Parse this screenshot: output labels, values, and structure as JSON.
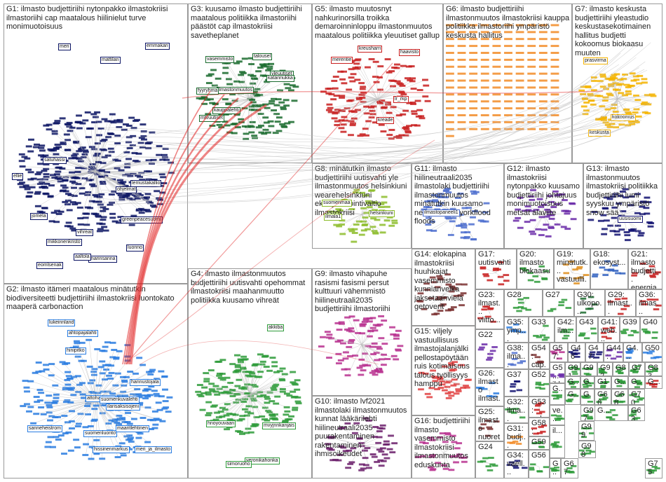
{
  "groups": [
    {
      "id": "g1",
      "title": "G1: ilmasto budjettiriihi nytonpakko ilmastokriisi ilmastoriihi cap maatalous hiilinielut turve monimuotoisuus",
      "color": "#0b1463",
      "labels": [
        "lemustakallio",
        "jomela",
        "meri",
        "mikkonenkristo",
        "vihreat",
        "marinsanna",
        "luonno",
        "greenpeacesuomi",
        "satuhassi",
        "emmakari",
        "aaltola",
        "mattilan",
        "ellie",
        "ohjelmat",
        "eomlsenak"
      ]
    },
    {
      "id": "g2",
      "title": "G2: ilmasto itämeri maatalous minätutkin biodiversiteetti budjettiriihi ilmastokriisi luontokato maaperä carbonaction",
      "color": "#2a7de1",
      "labels": [
        "hinipitko",
        "ahtopajalahti",
        "ilarisaksisojeni",
        "hissinenmarkus",
        "hannustojala",
        "sanneheistrom",
        "meri_ja_ilmasto",
        "attoharjanne",
        "suomenluonto",
        "suomenkuvalehti",
        "maaritlehtinen",
        "lukeinnland"
      ]
    },
    {
      "id": "g3",
      "title": "G3: kuusamo ilmasto budjettiriihi maatalous politiikka ilmastoriihi päästöt cap ilmastokriisi savetheplanet",
      "color": "#1a6b2e",
      "labels": [
        "vasemmisto",
        "talousel",
        "kauppalehti",
        "mtvuutiset",
        "yleuutiset",
        "katannukka",
        "ilmastonmuutos",
        "fyyryhma"
      ]
    },
    {
      "id": "g4",
      "title": "G4: ilmasto ilmastonmuutos budjettiriihi uutisvahti opehommat ilmastokriisi maahanmuutto politiikka kuusamo vihreät",
      "color": "#2e9b3a",
      "labels": [
        "veronikahonka",
        "mvyjnnkanjais",
        "simoruoho",
        "akkiba",
        "hnoyouvaan"
      ]
    },
    {
      "id": "g5",
      "title": "G5: ilmasto muutosnyt nahkurinorsilla troikka demaroinninloppu ilmastonmuutos maatalous politiikka yleuutiset gallup",
      "color": "#c81e1e",
      "labels": [
        "merentie",
        "lr_rkp",
        "kreusharri",
        "kreade",
        "haavisto"
      ]
    },
    {
      "id": "g6",
      "title": "G6: ilmasto budjettiriihi ilmastonmuutos ilmastokriisi kauppa politiikka ilmastoriihi ympäristö keskusta hallitus",
      "color": "#f28c28",
      "labels": []
    },
    {
      "id": "g7",
      "title": "G7: ilmasto keskusta budjettiriihi yleastudio keskustasekotimainen hallitus budjetti kokoomus biokaasu muuten",
      "color": "#f5b400",
      "labels": [
        "prasvirma",
        "keskusta",
        "kokoomus"
      ]
    },
    {
      "id": "g8",
      "title": "G8: minätutkin ilmasto budjettiriihi uutisvahti yle ilmastonmuutos helsinkiuni wearehelsinkiuni ekohyvinvointivaltio ilmastokriisi",
      "color": "#8dbd2b",
      "labels": [
        "suomenmaa",
        "ilmala1",
        "helsinkiuni"
      ]
    },
    {
      "id": "g9",
      "title": "G9: ilmasto vihapuhe rasismi fasismi persut kulttuuri vähemmistö hiilineutraali2035 budjettiriihi ilmastoriihi",
      "color": "#b8318f",
      "labels": []
    },
    {
      "id": "g10",
      "title": "G10: ilmasto lvf2021 ilmastolaki ilmastonmuutos kunnat lääkärilehti hiilineutraali2035 puurakentaminen rakentaminen ihmisoikeudet",
      "color": "#6b1f6b",
      "labels": []
    },
    {
      "id": "g11",
      "title": "G11: ilmasto hiilineutraali2035 ilmastolaki budjettiriihi ilmastonmuutos minätutkin kuusamo newyork newyorkflood floods",
      "color": "#4d6fcf",
      "labels": [
        "ilmastopaneeli1"
      ]
    },
    {
      "id": "g12",
      "title": "G12: ilmasto ilmastokriisi nytonpakko kuusamo budjettiriihi johtajuus monimuotoisuus metsät alaviite",
      "color": "#6a2aa8",
      "labels": []
    },
    {
      "id": "g13",
      "title": "G13: ilmasto ilmastonmuutos ilmastokriisi politiikka budjettiriihi lumi syyskuu ympäristö snow sää",
      "color": "#101070",
      "labels": [
        "uusisuomi"
      ]
    },
    {
      "id": "g14",
      "title": "G14: elokapina ilmastokriisi huuhkajat vasemmisto kunnianvelka jaksetaanvielä getoverit",
      "color": "#7a3030",
      "labels": []
    },
    {
      "id": "g15",
      "title": "G15: viljely vastuullisuus ilmastojalanjälki pellostapöytään ruis kotimaisuus talous työllisyys hamppu",
      "color": "#e04040",
      "labels": []
    },
    {
      "id": "g16",
      "title": "G16: budjettiriihi ilmasto vasemmisto ilmastokriisi ilmastonmuutos eduskunta",
      "color": "#b8318f",
      "labels": []
    },
    {
      "id": "g17",
      "title": "G17: uutisvahti",
      "color": "#c81e1e",
      "labels": []
    },
    {
      "id": "g18",
      "title": "G18: ekosyst...",
      "color": "#3060c0",
      "labels": []
    },
    {
      "id": "g19",
      "title": "G19: minätutk... vastuulli... osaamin...",
      "color": "#e09020",
      "labels": []
    },
    {
      "id": "g20",
      "title": "G20: ilmasto biokaasu",
      "color": "#2e9b3a",
      "labels": []
    },
    {
      "id": "g21",
      "title": "G21: ilmasto budjetti... energia...",
      "color": "#c81e1e",
      "labels": []
    },
    {
      "id": "g22",
      "title": "G22",
      "color": "#6a2aa8",
      "labels": []
    },
    {
      "id": "g23",
      "title": "G23: ilmast... viitto...",
      "color": "#c81e1e",
      "labels": []
    },
    {
      "id": "g24",
      "title": "G24",
      "color": "#2e9b3a",
      "labels": []
    },
    {
      "id": "g25",
      "title": "G25: ilmasto nuoret",
      "color": "#7a3030",
      "labels": []
    },
    {
      "id": "g26",
      "title": "G26: ilmasto ilmast...",
      "color": "#2a7de1",
      "labels": []
    },
    {
      "id": "g27",
      "title": "G27",
      "color": "#2e9b3a",
      "labels": []
    },
    {
      "id": "g28",
      "title": "G28",
      "color": "#2e9b3a",
      "labels": []
    },
    {
      "id": "g29",
      "title": "G29: ilmast...",
      "color": "#c81e1e",
      "labels": []
    },
    {
      "id": "g30",
      "title": "G30: ulkopo...",
      "color": "#1a6b2e",
      "labels": []
    },
    {
      "id": "g31",
      "title": "G31: budj...",
      "color": "#f28c28",
      "labels": []
    },
    {
      "id": "g32",
      "title": "G32: ilma...",
      "color": "#2e9b3a",
      "labels": []
    },
    {
      "id": "g33",
      "title": "G33",
      "color": "#2e9b3a",
      "labels": []
    },
    {
      "id": "g34",
      "title": "G34: vaell...",
      "color": "#101070",
      "labels": []
    },
    {
      "id": "g35",
      "title": "G35: ymp...",
      "color": "#2a7de1",
      "labels": []
    },
    {
      "id": "g36",
      "title": "G36: ilmas...",
      "color": "#c81e1e",
      "labels": []
    },
    {
      "id": "g37",
      "title": "G37",
      "color": "#101070",
      "labels": []
    },
    {
      "id": "g38",
      "title": "G38: ilma...",
      "color": "#4d6fcf",
      "labels": []
    },
    {
      "id": "g39",
      "title": "G39",
      "color": "#2e9b3a",
      "labels": []
    },
    {
      "id": "g40",
      "title": "G40",
      "color": "#2e9b3a",
      "labels": []
    },
    {
      "id": "g41",
      "title": "G41: web...",
      "color": "#c81e1e",
      "labels": []
    },
    {
      "id": "g42",
      "title": "G42: ilm...",
      "color": "#2e9b3a",
      "labels": []
    },
    {
      "id": "g43",
      "title": "G43",
      "color": "#2e9b3a",
      "labels": []
    },
    {
      "id": "g44",
      "title": "G44: ipp...",
      "color": "#6a2aa8",
      "labels": []
    },
    {
      "id": "g46",
      "title": "G46",
      "color": "#101070",
      "labels": []
    },
    {
      "id": "g47",
      "title": "G47: ilm...",
      "color": "#101070",
      "labels": []
    },
    {
      "id": "g4x",
      "title": "G4...",
      "color": "#2a7de1",
      "labels": []
    },
    {
      "id": "g50",
      "title": "G50",
      "color": "#2a7de1",
      "labels": []
    },
    {
      "id": "g52",
      "title": "G52",
      "color": "#2e9b3a",
      "labels": []
    },
    {
      "id": "g53",
      "title": "G53: pel...",
      "color": "#c81e1e",
      "labels": []
    },
    {
      "id": "g54",
      "title": "G54: cap...",
      "color": "#7a3030",
      "labels": []
    },
    {
      "id": "g56",
      "title": "G56",
      "color": "#2e9b3a",
      "labels": []
    },
    {
      "id": "g57",
      "title": "G57: sak...",
      "color": "#b8318f",
      "labels": []
    },
    {
      "id": "g58",
      "title": "G58: the...",
      "color": "#c81e1e",
      "labels": []
    },
    {
      "id": "g59",
      "title": "G59",
      "color": "#2e9b3a",
      "labels": []
    },
    {
      "id": "g5x",
      "title": "G5... jhl",
      "color": "#6a2aa8",
      "labels": []
    },
    {
      "id": "g63",
      "title": "G63",
      "color": "#2e9b3a",
      "labels": []
    },
    {
      "id": "g66",
      "title": "G66",
      "color": "#2e9b3a",
      "labels": []
    },
    {
      "id": "g67",
      "title": "G67",
      "color": "#2e9b3a",
      "labels": []
    },
    {
      "id": "g68",
      "title": "G68",
      "color": "#2e9b3a",
      "labels": []
    },
    {
      "id": "g70",
      "title": "G70",
      "color": "#2e9b3a",
      "labels": []
    },
    {
      "id": "g75",
      "title": "G75",
      "color": "#2e9b3a",
      "labels": []
    },
    {
      "id": "g83",
      "title": "G83",
      "color": "#2e9b3a",
      "labels": []
    },
    {
      "id": "g91",
      "title": "G91",
      "color": "#2e9b3a",
      "labels": []
    },
    {
      "id": "g92",
      "title": "G92",
      "color": "#2e9b3a",
      "labels": []
    },
    {
      "id": "g97",
      "title": "G97",
      "color": "#2e9b3a",
      "labels": []
    },
    {
      "id": "g98",
      "title": "G98",
      "color": "#2e9b3a",
      "labels": []
    },
    {
      "id": "g99",
      "title": "G99",
      "color": "#2e9b3a",
      "labels": []
    },
    {
      "id": "g_a",
      "title": "G...",
      "color": "#c81e1e",
      "labels": []
    },
    {
      "id": "g_b",
      "title": "G1",
      "color": "#2e9b3a",
      "labels": []
    },
    {
      "id": "g_c",
      "title": "G9",
      "color": "#2e9b3a",
      "labels": []
    },
    {
      "id": "g_d",
      "title": "G8",
      "color": "#2e9b3a",
      "labels": []
    },
    {
      "id": "g_e",
      "title": "G7",
      "color": "#2e9b3a",
      "labels": []
    },
    {
      "id": "g_f",
      "title": "G...",
      "color": "#2e9b3a",
      "labels": []
    },
    {
      "id": "g_g",
      "title": "G...",
      "color": "#2e9b3a",
      "labels": []
    },
    {
      "id": "g_h",
      "title": "G...",
      "color": "#2e9b3a",
      "labels": []
    },
    {
      "id": "g_i",
      "title": "G...",
      "color": "#2e9b3a",
      "labels": []
    },
    {
      "id": "g_j",
      "title": "G...",
      "color": "#2e9b3a",
      "labels": []
    },
    {
      "id": "g_k",
      "title": "G...",
      "color": "#2e9b3a",
      "labels": []
    },
    {
      "id": "g_l",
      "title": "ve...",
      "color": "#2e9b3a",
      "labels": []
    },
    {
      "id": "g_m",
      "title": "G...",
      "color": "#2e9b3a",
      "labels": []
    },
    {
      "id": "g_n",
      "title": "il...",
      "color": "#2e9b3a",
      "labels": []
    },
    {
      "id": "g_o",
      "title": "G...",
      "color": "#2e9b3a",
      "labels": []
    },
    {
      "id": "g_p",
      "title": "G...",
      "color": "#2e9b3a",
      "labels": []
    }
  ]
}
